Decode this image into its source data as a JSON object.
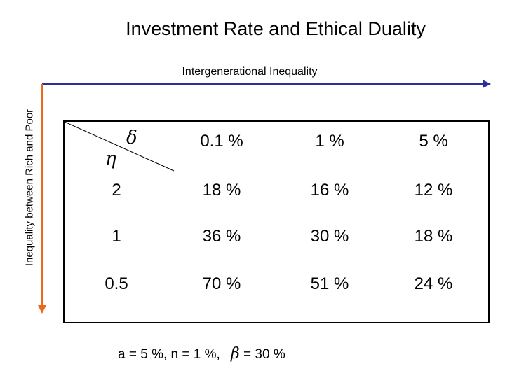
{
  "title": "Investment Rate and Ethical Duality",
  "horizontal_axis_label": "Intergenerational Inequality",
  "vertical_axis_label": "Inequality between Rich and Poor",
  "axis_colors": {
    "horizontal": "#2a2fa0",
    "vertical": "#e8691b"
  },
  "table": {
    "corner_column_symbol": "δ",
    "corner_row_symbol": "η",
    "column_headers": [
      "0.1 %",
      "1 %",
      "5 %"
    ],
    "rows": [
      {
        "eta": "2",
        "values": [
          "18 %",
          "16 %",
          "12 %"
        ]
      },
      {
        "eta": "1",
        "values": [
          "36 %",
          "30 %",
          "18 %"
        ]
      },
      {
        "eta": "0.5",
        "values": [
          "70 %",
          "51 %",
          "24 %"
        ]
      }
    ]
  },
  "footnote": {
    "text": "a = 5 %, n = 1 %,",
    "beta_symbol": "β",
    "beta_text": "= 30 %"
  }
}
